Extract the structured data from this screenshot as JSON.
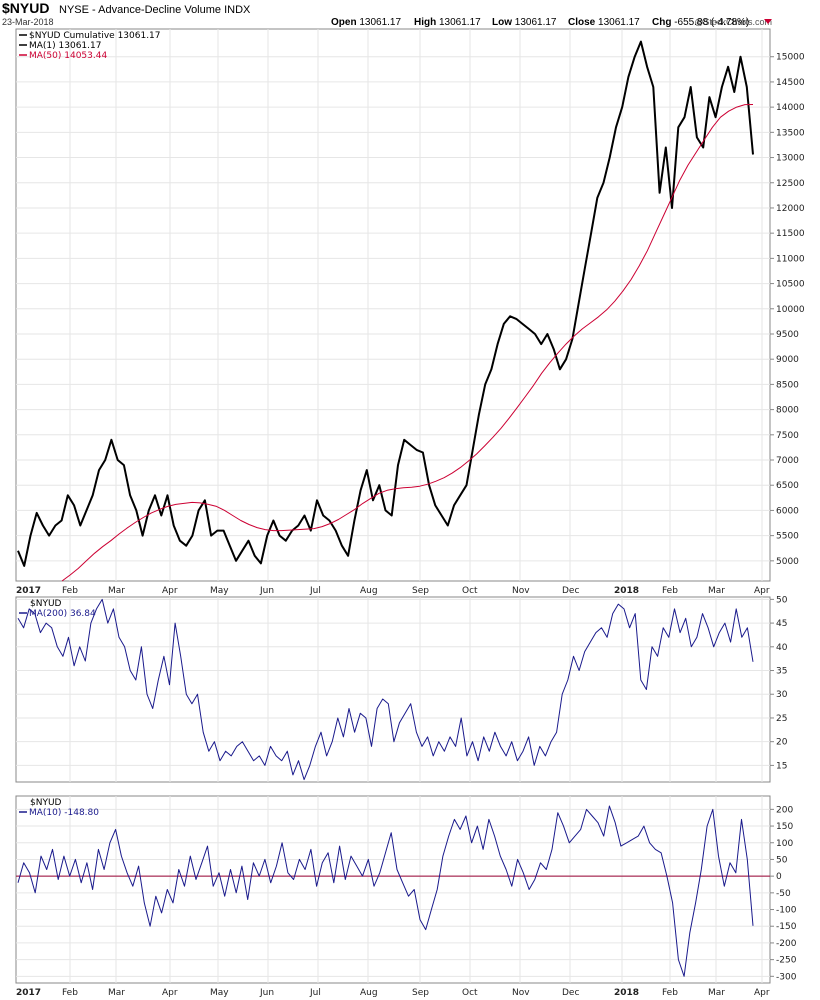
{
  "header": {
    "symbol": "$NYUD",
    "description": "NYSE - Advance-Decline Volume INDX",
    "date": "23-Mar-2018",
    "ohlc": [
      {
        "label": "Open",
        "value": "13061.17"
      },
      {
        "label": "High",
        "value": "13061.17"
      },
      {
        "label": "Low",
        "value": "13061.17"
      },
      {
        "label": "Close",
        "value": "13061.17"
      },
      {
        "label": "Chg",
        "value": "-655.88 (-4.78%)"
      }
    ],
    "watermark": "@StockCharts.com"
  },
  "colors": {
    "price": "#000000",
    "ma50": "#cc0033",
    "indicator": "#1a1a8c",
    "zero_line": "#990033",
    "grid": "#e6e6e6"
  },
  "chart_data": [
    {
      "type": "line",
      "panel": "main",
      "legend": [
        "$NYUD Cumulative 13061.17",
        "MA(1) 13061.17",
        "MA(50) 14053.44"
      ],
      "ylim": [
        4600,
        15550
      ],
      "y_ticks": [
        5000,
        5500,
        6000,
        6500,
        7000,
        7500,
        8000,
        8500,
        9000,
        9500,
        10000,
        10500,
        11000,
        11500,
        12000,
        12500,
        13000,
        13500,
        14000,
        14500,
        15000
      ],
      "x_ticks": [
        "2017",
        "Feb",
        "Mar",
        "Apr",
        "May",
        "Jun",
        "Jul",
        "Aug",
        "Sep",
        "Oct",
        "Nov",
        "Dec",
        "2018",
        "Feb",
        "Mar",
        "Apr"
      ],
      "grid": true,
      "series": [
        {
          "name": "$NYUD Cumulative",
          "color": "#000000",
          "values": [
            5200,
            4900,
            5500,
            5950,
            5700,
            5500,
            5700,
            5800,
            6300,
            6100,
            5700,
            6000,
            6300,
            6800,
            7000,
            7400,
            7000,
            6900,
            6300,
            6000,
            5500,
            6000,
            6300,
            5900,
            6300,
            5700,
            5400,
            5300,
            5500,
            6000,
            6200,
            5500,
            5600,
            5600,
            5300,
            5000,
            5200,
            5400,
            5100,
            4950,
            5500,
            5800,
            5500,
            5400,
            5600,
            5700,
            5900,
            5600,
            6200,
            5900,
            5800,
            5600,
            5300,
            5100,
            5800,
            6400,
            6800,
            6200,
            6500,
            6000,
            5900,
            6900,
            7400,
            7300,
            7200,
            7150,
            6500,
            6100,
            5900,
            5700,
            6100,
            6300,
            6500,
            7200,
            7900,
            8500,
            8800,
            9300,
            9700,
            9850,
            9800,
            9700,
            9600,
            9500,
            9300,
            9500,
            9200,
            8800,
            9000,
            9400,
            10100,
            10800,
            11500,
            12200,
            12500,
            13000,
            13600,
            14000,
            14600,
            15000,
            15300,
            14800,
            14400,
            12300,
            13200,
            12000,
            13600,
            13800,
            14400,
            13400,
            13200,
            14200,
            13800,
            14400,
            14800,
            14300,
            15000,
            14400,
            13061
          ]
        },
        {
          "name": "MA(50)",
          "color": "#cc0033",
          "values": [
            4600,
            4720,
            4850,
            5000,
            5150,
            5280,
            5400,
            5530,
            5650,
            5760,
            5860,
            5950,
            6020,
            6080,
            6120,
            6140,
            6160,
            6150,
            6120,
            6080,
            6000,
            5900,
            5800,
            5720,
            5660,
            5620,
            5600,
            5600,
            5610,
            5620,
            5630,
            5640,
            5680,
            5740,
            5820,
            5920,
            6020,
            6140,
            6240,
            6340,
            6400,
            6430,
            6450,
            6460,
            6480,
            6520,
            6580,
            6650,
            6740,
            6850,
            6980,
            7120,
            7280,
            7450,
            7630,
            7830,
            8040,
            8260,
            8480,
            8720,
            8930,
            9120,
            9300,
            9460,
            9600,
            9720,
            9840,
            9980,
            10150,
            10350,
            10580,
            10850,
            11150,
            11500,
            11850,
            12200,
            12550,
            12850,
            13100,
            13350,
            13600,
            13800,
            13920,
            14000,
            14050,
            14053
          ]
        }
      ]
    },
    {
      "type": "line",
      "panel": "middle",
      "legend": [
        "$NYUD",
        "MA(200) 36.84"
      ],
      "ylim": [
        11.5,
        50.5
      ],
      "y_ticks": [
        15,
        20,
        25,
        30,
        35,
        40,
        45,
        50
      ],
      "grid": true,
      "series": [
        {
          "name": "MA(200)",
          "color": "#1a1a8c",
          "values": [
            46,
            44,
            48,
            47,
            43,
            45,
            44,
            40,
            38,
            42,
            36,
            40,
            37,
            45,
            48,
            50,
            45,
            48,
            42,
            40,
            35,
            33,
            40,
            30,
            27,
            33,
            38,
            32,
            45,
            38,
            30,
            28,
            30,
            22,
            18,
            20,
            16,
            18,
            17,
            19,
            20,
            18,
            16,
            17,
            15,
            19,
            17,
            16,
            18,
            13,
            16,
            12,
            15,
            19,
            22,
            17,
            20,
            25,
            21,
            27,
            22,
            26,
            25,
            19,
            27,
            29,
            28,
            20,
            24,
            26,
            28,
            22,
            19,
            21,
            17,
            20,
            18,
            21,
            19,
            25,
            17,
            20,
            16,
            21,
            18,
            22,
            19,
            17,
            20,
            16,
            18,
            21,
            15,
            19,
            17,
            20,
            22,
            30,
            33,
            38,
            35,
            39,
            41,
            43,
            44,
            42,
            47,
            49,
            48,
            44,
            47,
            33,
            31,
            40,
            38,
            44,
            42,
            48,
            43,
            46,
            40,
            42,
            47,
            44,
            40,
            43,
            45,
            41,
            48,
            42,
            44,
            36.84
          ]
        }
      ]
    },
    {
      "type": "line",
      "panel": "bottom",
      "legend": [
        "$NYUD",
        "MA(10) -148.80"
      ],
      "ylim": [
        -320,
        240
      ],
      "y_ticks": [
        -300,
        -250,
        -200,
        -150,
        -100,
        -50,
        0,
        50,
        100,
        150,
        200
      ],
      "x_ticks": [
        "2017",
        "Feb",
        "Mar",
        "Apr",
        "May",
        "Jun",
        "Jul",
        "Aug",
        "Sep",
        "Oct",
        "Nov",
        "Dec",
        "2018",
        "Feb",
        "Mar",
        "Apr"
      ],
      "grid": true,
      "reference_line": 0,
      "series": [
        {
          "name": "MA(10)",
          "color": "#1a1a8c",
          "values": [
            -20,
            40,
            10,
            -50,
            60,
            20,
            80,
            -10,
            60,
            0,
            50,
            -20,
            40,
            -40,
            80,
            20,
            100,
            140,
            60,
            10,
            -30,
            30,
            -80,
            -150,
            -60,
            -110,
            -40,
            -80,
            20,
            -30,
            60,
            -10,
            40,
            90,
            -30,
            10,
            -60,
            20,
            -50,
            30,
            -70,
            40,
            0,
            50,
            -20,
            30,
            100,
            10,
            -10,
            50,
            20,
            80,
            -30,
            40,
            70,
            -20,
            90,
            -10,
            60,
            30,
            0,
            50,
            -30,
            10,
            70,
            130,
            20,
            -20,
            -60,
            -40,
            -130,
            -160,
            -100,
            -40,
            60,
            120,
            170,
            140,
            180,
            100,
            150,
            80,
            170,
            120,
            60,
            20,
            -30,
            50,
            10,
            -40,
            -10,
            40,
            20,
            80,
            190,
            150,
            100,
            120,
            140,
            200,
            180,
            160,
            120,
            210,
            160,
            90,
            100,
            110,
            120,
            150,
            100,
            80,
            70,
            0,
            -80,
            -250,
            -300,
            -170,
            -80,
            20,
            150,
            200,
            60,
            -30,
            40,
            10,
            170,
            50,
            -148.8
          ]
        }
      ]
    }
  ]
}
